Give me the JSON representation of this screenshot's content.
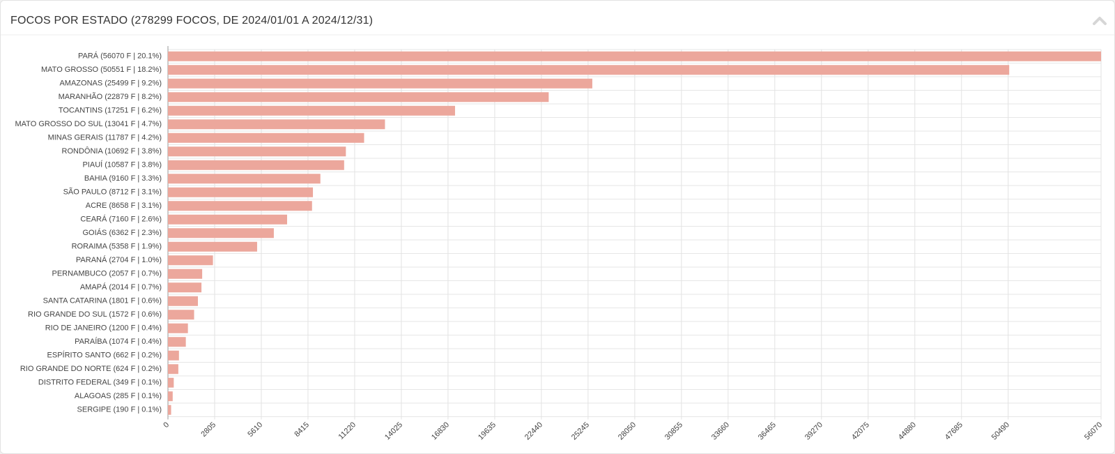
{
  "chart_data": {
    "type": "bar",
    "orientation": "horizontal",
    "title": "FOCOS POR ESTADO (278299 FOCOS, DE 2024/01/01 A 2024/12/31)",
    "categories": [
      "PARÁ (56070 F | 20.1%)",
      "MATO GROSSO (50551 F | 18.2%)",
      "AMAZONAS (25499 F | 9.2%)",
      "MARANHÃO (22879 F | 8.2%)",
      "TOCANTINS (17251 F | 6.2%)",
      "MATO GROSSO DO SUL (13041 F | 4.7%)",
      "MINAS GERAIS (11787 F | 4.2%)",
      "RONDÔNIA (10692 F | 3.8%)",
      "PIAUÍ (10587 F | 3.8%)",
      "BAHIA (9160 F | 3.3%)",
      "SÃO PAULO (8712 F | 3.1%)",
      "ACRE (8658 F | 3.1%)",
      "CEARÁ (7160 F | 2.6%)",
      "GOIÁS (6362 F | 2.3%)",
      "RORAIMA (5358 F | 1.9%)",
      "PARANÁ (2704 F | 1.0%)",
      "PERNAMBUCO (2057 F | 0.7%)",
      "AMAPÁ (2014 F | 0.7%)",
      "SANTA CATARINA (1801 F | 0.6%)",
      "RIO GRANDE DO SUL (1572 F | 0.6%)",
      "RIO DE JANEIRO (1200 F | 0.4%)",
      "PARAÍBA (1074 F | 0.4%)",
      "ESPÍRITO SANTO (662 F | 0.2%)",
      "RIO GRANDE DO NORTE (624 F | 0.2%)",
      "DISTRITO FEDERAL (349 F | 0.1%)",
      "ALAGOAS (285 F | 0.1%)",
      "SERGIPE (190 F | 0.1%)"
    ],
    "values": [
      56070,
      50551,
      25499,
      22879,
      17251,
      13041,
      11787,
      10692,
      10587,
      9160,
      8712,
      8658,
      7160,
      6362,
      5358,
      2704,
      2057,
      2014,
      1801,
      1572,
      1200,
      1074,
      662,
      624,
      349,
      285,
      190
    ],
    "color": "#eca79c",
    "xlim": [
      0,
      56070
    ],
    "xticks": [
      0,
      2805,
      5610,
      8415,
      11220,
      14025,
      16830,
      19635,
      22440,
      25245,
      28050,
      30855,
      33660,
      36465,
      39270,
      42075,
      44880,
      47685,
      50490,
      56070
    ],
    "grid": true
  }
}
